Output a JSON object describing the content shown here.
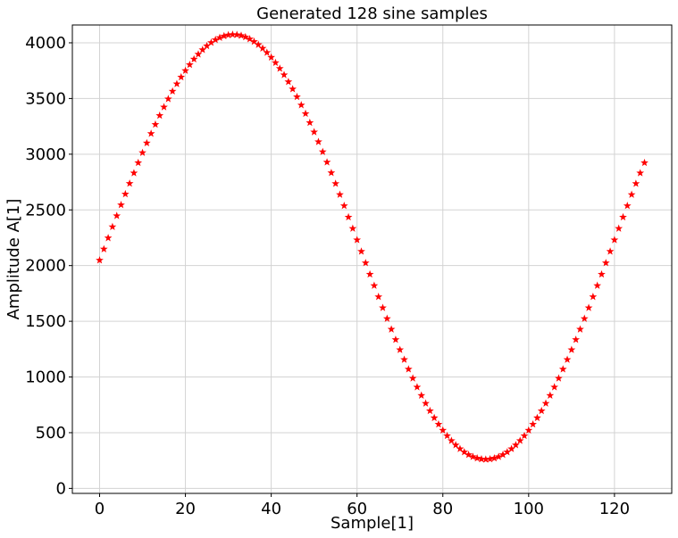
{
  "chart_data": {
    "type": "scatter",
    "title": "Generated 128 sine samples",
    "xlabel": "Sample[1]",
    "ylabel": "Amplitude A[1]",
    "xlim": [
      -6.35,
      133.35
    ],
    "ylim": [
      -45,
      4160
    ],
    "xticks": [
      0,
      20,
      40,
      60,
      80,
      100,
      120
    ],
    "yticks": [
      0,
      500,
      1000,
      1500,
      2000,
      2500,
      3000,
      3500,
      4000
    ],
    "grid": true,
    "marker": "star",
    "color": "#ff0000",
    "series": [
      {
        "x_start": 0,
        "x_step": 1,
        "count": 128,
        "values": [
          2048,
          2148,
          2248,
          2348,
          2447,
          2545,
          2642,
          2737,
          2831,
          2923,
          3013,
          3100,
          3185,
          3267,
          3347,
          3423,
          3496,
          3565,
          3631,
          3692,
          3750,
          3803,
          3853,
          3897,
          3937,
          3972,
          4002,
          4027,
          4046,
          4061,
          4070,
          4074,
          4072,
          4065,
          4052,
          4034,
          4011,
          3983,
          3950,
          3912,
          3869,
          3821,
          3769,
          3712,
          3650,
          3585,
          3515,
          3441,
          3364,
          3283,
          3199,
          3111,
          3021,
          2928,
          2833,
          2736,
          2637,
          2537,
          2435,
          2333,
          2230,
          2127,
          2024,
          1922,
          1820,
          1720,
          1621,
          1524,
          1428,
          1335,
          1244,
          1156,
          1070,
          988,
          909,
          834,
          763,
          696,
          633,
          575,
          521,
          472,
          428,
          389,
          355,
          326,
          302,
          284,
          271,
          263,
          260,
          263,
          271,
          284,
          302,
          326,
          355,
          389,
          428,
          472,
          521,
          575,
          633,
          696,
          763,
          834,
          909,
          988,
          1070,
          1156,
          1244,
          1335,
          1428,
          1524,
          1621,
          1720,
          1820,
          1922,
          2024,
          2127,
          2230,
          2333,
          2435,
          2537,
          2637,
          2736,
          2831,
          2923
        ]
      }
    ]
  }
}
